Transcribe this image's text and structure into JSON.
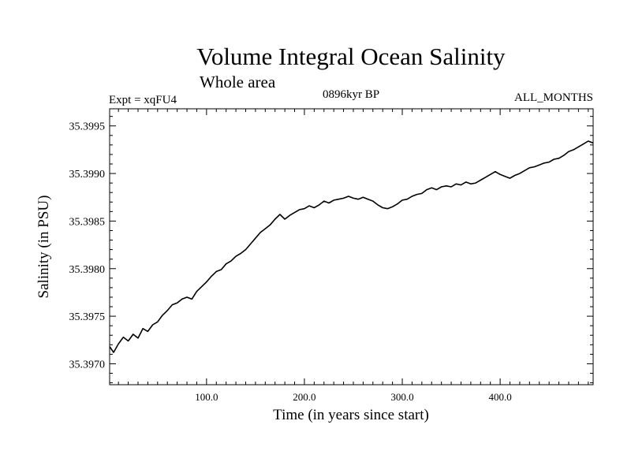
{
  "chart_data": {
    "type": "line",
    "title": "Volume Integral Ocean Salinity",
    "subtitle": "Whole area",
    "labels": {
      "left": "Expt = xqFU4",
      "center": "0896kyr BP",
      "right": "ALL_MONTHS"
    },
    "xlabel": "Time (in years since start)",
    "ylabel": "Salinity (in PSU)",
    "xlim": [
      1,
      495
    ],
    "ylim": [
      35.39678,
      35.39968
    ],
    "x_ticks": [
      100,
      200,
      300,
      400
    ],
    "x_tick_labels": [
      "100.0",
      "200.0",
      "300.0",
      "400.0"
    ],
    "y_ticks": [
      35.397,
      35.3975,
      35.398,
      35.3985,
      35.399,
      35.3995
    ],
    "y_tick_labels": [
      "35.3970",
      "35.3975",
      "35.3980",
      "35.3985",
      "35.3990",
      "35.3995"
    ],
    "line_color": "#000000",
    "series": [
      {
        "name": "Salinity",
        "x": [
          1,
          5,
          10,
          15,
          20,
          25,
          30,
          35,
          40,
          45,
          50,
          55,
          60,
          65,
          70,
          75,
          80,
          85,
          90,
          95,
          100,
          105,
          110,
          115,
          120,
          125,
          130,
          135,
          140,
          145,
          150,
          155,
          160,
          165,
          170,
          175,
          180,
          185,
          190,
          195,
          200,
          205,
          210,
          215,
          220,
          225,
          230,
          235,
          240,
          245,
          250,
          255,
          260,
          265,
          270,
          275,
          280,
          285,
          290,
          295,
          300,
          305,
          310,
          315,
          320,
          325,
          330,
          335,
          340,
          345,
          350,
          355,
          360,
          365,
          370,
          375,
          380,
          385,
          390,
          395,
          400,
          405,
          410,
          415,
          420,
          425,
          430,
          435,
          440,
          445,
          450,
          455,
          460,
          465,
          470,
          475,
          480,
          485,
          490,
          495
        ],
        "values": [
          35.39718,
          35.39712,
          35.39721,
          35.39728,
          35.39724,
          35.39731,
          35.39727,
          35.39737,
          35.39734,
          35.39741,
          35.39744,
          35.39751,
          35.39756,
          35.39762,
          35.39764,
          35.39768,
          35.3977,
          35.39768,
          35.39776,
          35.39781,
          35.39786,
          35.39792,
          35.39797,
          35.39799,
          35.39805,
          35.39808,
          35.39813,
          35.39816,
          35.3982,
          35.39826,
          35.39832,
          35.39838,
          35.39842,
          35.39846,
          35.39852,
          35.39857,
          35.39852,
          35.39856,
          35.39859,
          35.39862,
          35.39863,
          35.39866,
          35.39864,
          35.39867,
          35.39871,
          35.39869,
          35.39872,
          35.39873,
          35.39874,
          35.39876,
          35.39874,
          35.39873,
          35.39875,
          35.39873,
          35.39871,
          35.39867,
          35.39864,
          35.39863,
          35.39865,
          35.39868,
          35.39872,
          35.39873,
          35.39876,
          35.39878,
          35.39879,
          35.39883,
          35.39885,
          35.39883,
          35.39886,
          35.39887,
          35.39886,
          35.39889,
          35.39888,
          35.39891,
          35.39889,
          35.3989,
          35.39893,
          35.39896,
          35.39899,
          35.39902,
          35.39899,
          35.39897,
          35.39895,
          35.39898,
          35.399,
          35.39903,
          35.39906,
          35.39907,
          35.39909,
          35.39911,
          35.39912,
          35.39915,
          35.39916,
          35.39919,
          35.39923,
          35.39925,
          35.39928,
          35.39931,
          35.39934,
          35.39932
        ]
      }
    ]
  }
}
